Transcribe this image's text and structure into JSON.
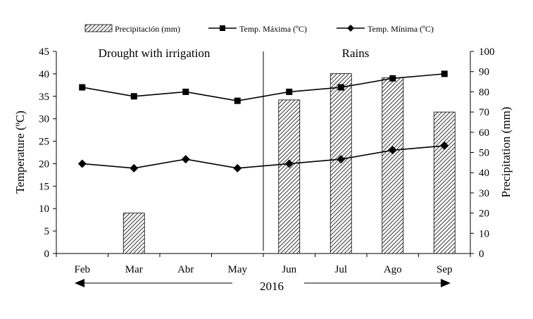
{
  "chart_data": {
    "type": "bar+line",
    "categories": [
      "Feb",
      "Mar",
      "Abr",
      "May",
      "Jun",
      "Jul",
      "Ago",
      "Sep"
    ],
    "series": [
      {
        "name": "Precipitación (mm)",
        "kind": "bar",
        "axis": "right",
        "values": [
          0,
          20,
          0,
          0,
          76,
          89,
          87,
          70
        ]
      },
      {
        "name": "Temp. Máxima (ºC)",
        "kind": "line",
        "axis": "left",
        "marker": "square",
        "values": [
          37,
          35,
          36,
          34,
          36,
          37,
          39,
          40
        ]
      },
      {
        "name": "Temp. Mínima (ºC)",
        "kind": "line",
        "axis": "left",
        "marker": "diamond",
        "values": [
          20,
          19,
          21,
          19,
          20,
          21,
          23,
          24
        ]
      }
    ],
    "ylabel": "Temperature (ºC)",
    "y2label": "Precipitation (mm)",
    "ylim": [
      0,
      45
    ],
    "y2lim": [
      0,
      100
    ],
    "yticks": [
      0,
      5,
      10,
      15,
      20,
      25,
      30,
      35,
      40,
      45
    ],
    "y2ticks": [
      0,
      10,
      20,
      30,
      40,
      50,
      60,
      70,
      80,
      90,
      100
    ],
    "grid": false,
    "legend_position": "top",
    "annotations": {
      "left": "Drought with irrigation",
      "right": "Rains",
      "year": "2016"
    },
    "colors": {
      "bar_fill": "#ffffff",
      "bar_hatch": "#000000",
      "line": "#000000"
    }
  }
}
